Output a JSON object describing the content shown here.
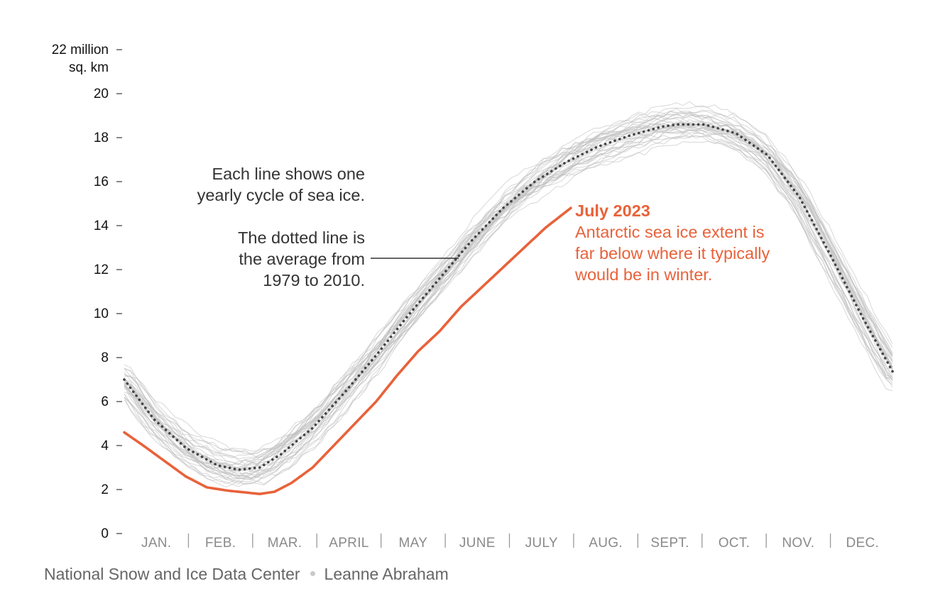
{
  "chart_data": {
    "type": "line",
    "ylabel": "sq. km",
    "ylim": [
      0,
      22
    ],
    "y_ticks": [
      {
        "value": 22,
        "lines": [
          "22 million",
          "sq. km"
        ]
      },
      {
        "value": 20,
        "lines": [
          "20"
        ]
      },
      {
        "value": 18,
        "lines": [
          "18"
        ]
      },
      {
        "value": 16,
        "lines": [
          "16"
        ]
      },
      {
        "value": 14,
        "lines": [
          "14"
        ]
      },
      {
        "value": 12,
        "lines": [
          "12"
        ]
      },
      {
        "value": 10,
        "lines": [
          "10"
        ]
      },
      {
        "value": 8,
        "lines": [
          "8"
        ]
      },
      {
        "value": 6,
        "lines": [
          "6"
        ]
      },
      {
        "value": 4,
        "lines": [
          "4"
        ]
      },
      {
        "value": 2,
        "lines": [
          "2"
        ]
      },
      {
        "value": 0,
        "lines": [
          "0"
        ]
      }
    ],
    "x_categories": [
      "JAN.",
      "FEB.",
      "MAR.",
      "APRIL",
      "MAY",
      "JUNE",
      "JULY",
      "AUG.",
      "SEPT.",
      "OCT.",
      "NOV.",
      "DEC."
    ],
    "x_unit": "day of year",
    "series": [
      {
        "name": "1979 to 2010 average",
        "style": "dotted",
        "color": "#444444",
        "points": [
          [
            1,
            7.0
          ],
          [
            15,
            5.2
          ],
          [
            30,
            3.9
          ],
          [
            45,
            3.1
          ],
          [
            55,
            2.9
          ],
          [
            65,
            3.0
          ],
          [
            75,
            3.6
          ],
          [
            90,
            4.8
          ],
          [
            105,
            6.4
          ],
          [
            120,
            8.1
          ],
          [
            135,
            9.9
          ],
          [
            150,
            11.6
          ],
          [
            165,
            13.3
          ],
          [
            180,
            14.8
          ],
          [
            195,
            16.0
          ],
          [
            210,
            16.9
          ],
          [
            225,
            17.6
          ],
          [
            240,
            18.1
          ],
          [
            255,
            18.5
          ],
          [
            262,
            18.6
          ],
          [
            275,
            18.6
          ],
          [
            290,
            18.2
          ],
          [
            305,
            17.2
          ],
          [
            320,
            15.3
          ],
          [
            335,
            12.6
          ],
          [
            350,
            9.8
          ],
          [
            365,
            7.2
          ]
        ]
      },
      {
        "name": "July 2023",
        "style": "solid",
        "color": "#e8623a",
        "points": [
          [
            1,
            4.6
          ],
          [
            10,
            4.0
          ],
          [
            20,
            3.3
          ],
          [
            30,
            2.6
          ],
          [
            40,
            2.1
          ],
          [
            50,
            1.95
          ],
          [
            60,
            1.85
          ],
          [
            65,
            1.8
          ],
          [
            72,
            1.9
          ],
          [
            80,
            2.3
          ],
          [
            90,
            3.0
          ],
          [
            100,
            4.0
          ],
          [
            110,
            5.0
          ],
          [
            120,
            6.0
          ],
          [
            130,
            7.2
          ],
          [
            140,
            8.3
          ],
          [
            150,
            9.2
          ],
          [
            160,
            10.3
          ],
          [
            170,
            11.2
          ],
          [
            180,
            12.1
          ],
          [
            190,
            13.0
          ],
          [
            200,
            13.9
          ],
          [
            212,
            14.8
          ]
        ]
      }
    ],
    "annotations": {
      "lines_note": [
        "Each line shows one",
        "yearly cycle of sea ice."
      ],
      "average_note": [
        "The dotted line is",
        "the average from",
        "1979 to 2010."
      ],
      "highlight_title": "July 2023",
      "highlight_text": [
        "Antarctic sea ice extent is",
        "far below where it typically",
        "would be in winter."
      ]
    },
    "grid": false,
    "colors": {
      "highlight": "#e8623a",
      "average": "#444444",
      "past_years": "#bdbdbd",
      "axis_text": "#121212",
      "month_text": "#8a8a8a"
    }
  },
  "footer": {
    "source": "National Snow and Ice Data Center",
    "credit": "Leanne Abraham"
  }
}
